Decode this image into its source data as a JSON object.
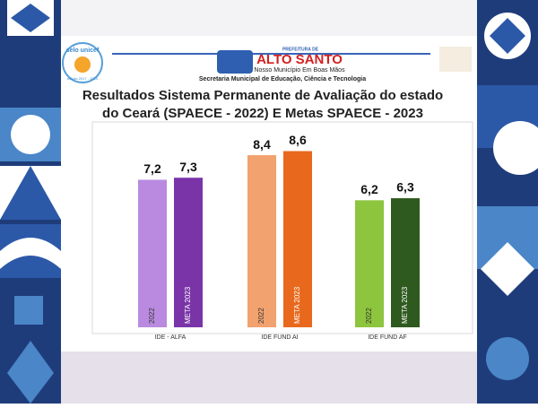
{
  "header": {
    "seal_title": "selo unicef",
    "seal_edition": "edição 2017 - 2020",
    "prefeitura": "PREFEITURA DE",
    "city": "ALTO SANTO",
    "slogan": "Nosso Município Em Boas Mãos",
    "secretaria": "Secretaria Municipal de Educação, Ciência e Tecnologia"
  },
  "chart_data": {
    "type": "bar",
    "title": [
      "Resultados Sistema Permanente de Avaliação do estado",
      "do Ceará (SPAECE - 2022) E Metas SPAECE - 2023"
    ],
    "categories": [
      "IDE - ALFA",
      "IDE FUND AI",
      "IDE FUND AF"
    ],
    "series": [
      {
        "name": "2022",
        "colors": [
          "#b98ae0",
          "#f2a26e",
          "#8dc53e"
        ],
        "values": [
          7.2,
          8.4,
          6.2
        ],
        "value_labels": [
          "7,2",
          "8,4",
          "6,2"
        ]
      },
      {
        "name": "META 2023",
        "colors": [
          "#7a34a8",
          "#e8691e",
          "#2f5a1f"
        ],
        "values": [
          7.3,
          8.6,
          6.3
        ],
        "value_labels": [
          "7,3",
          "8,6",
          "6,3"
        ]
      }
    ]
  }
}
